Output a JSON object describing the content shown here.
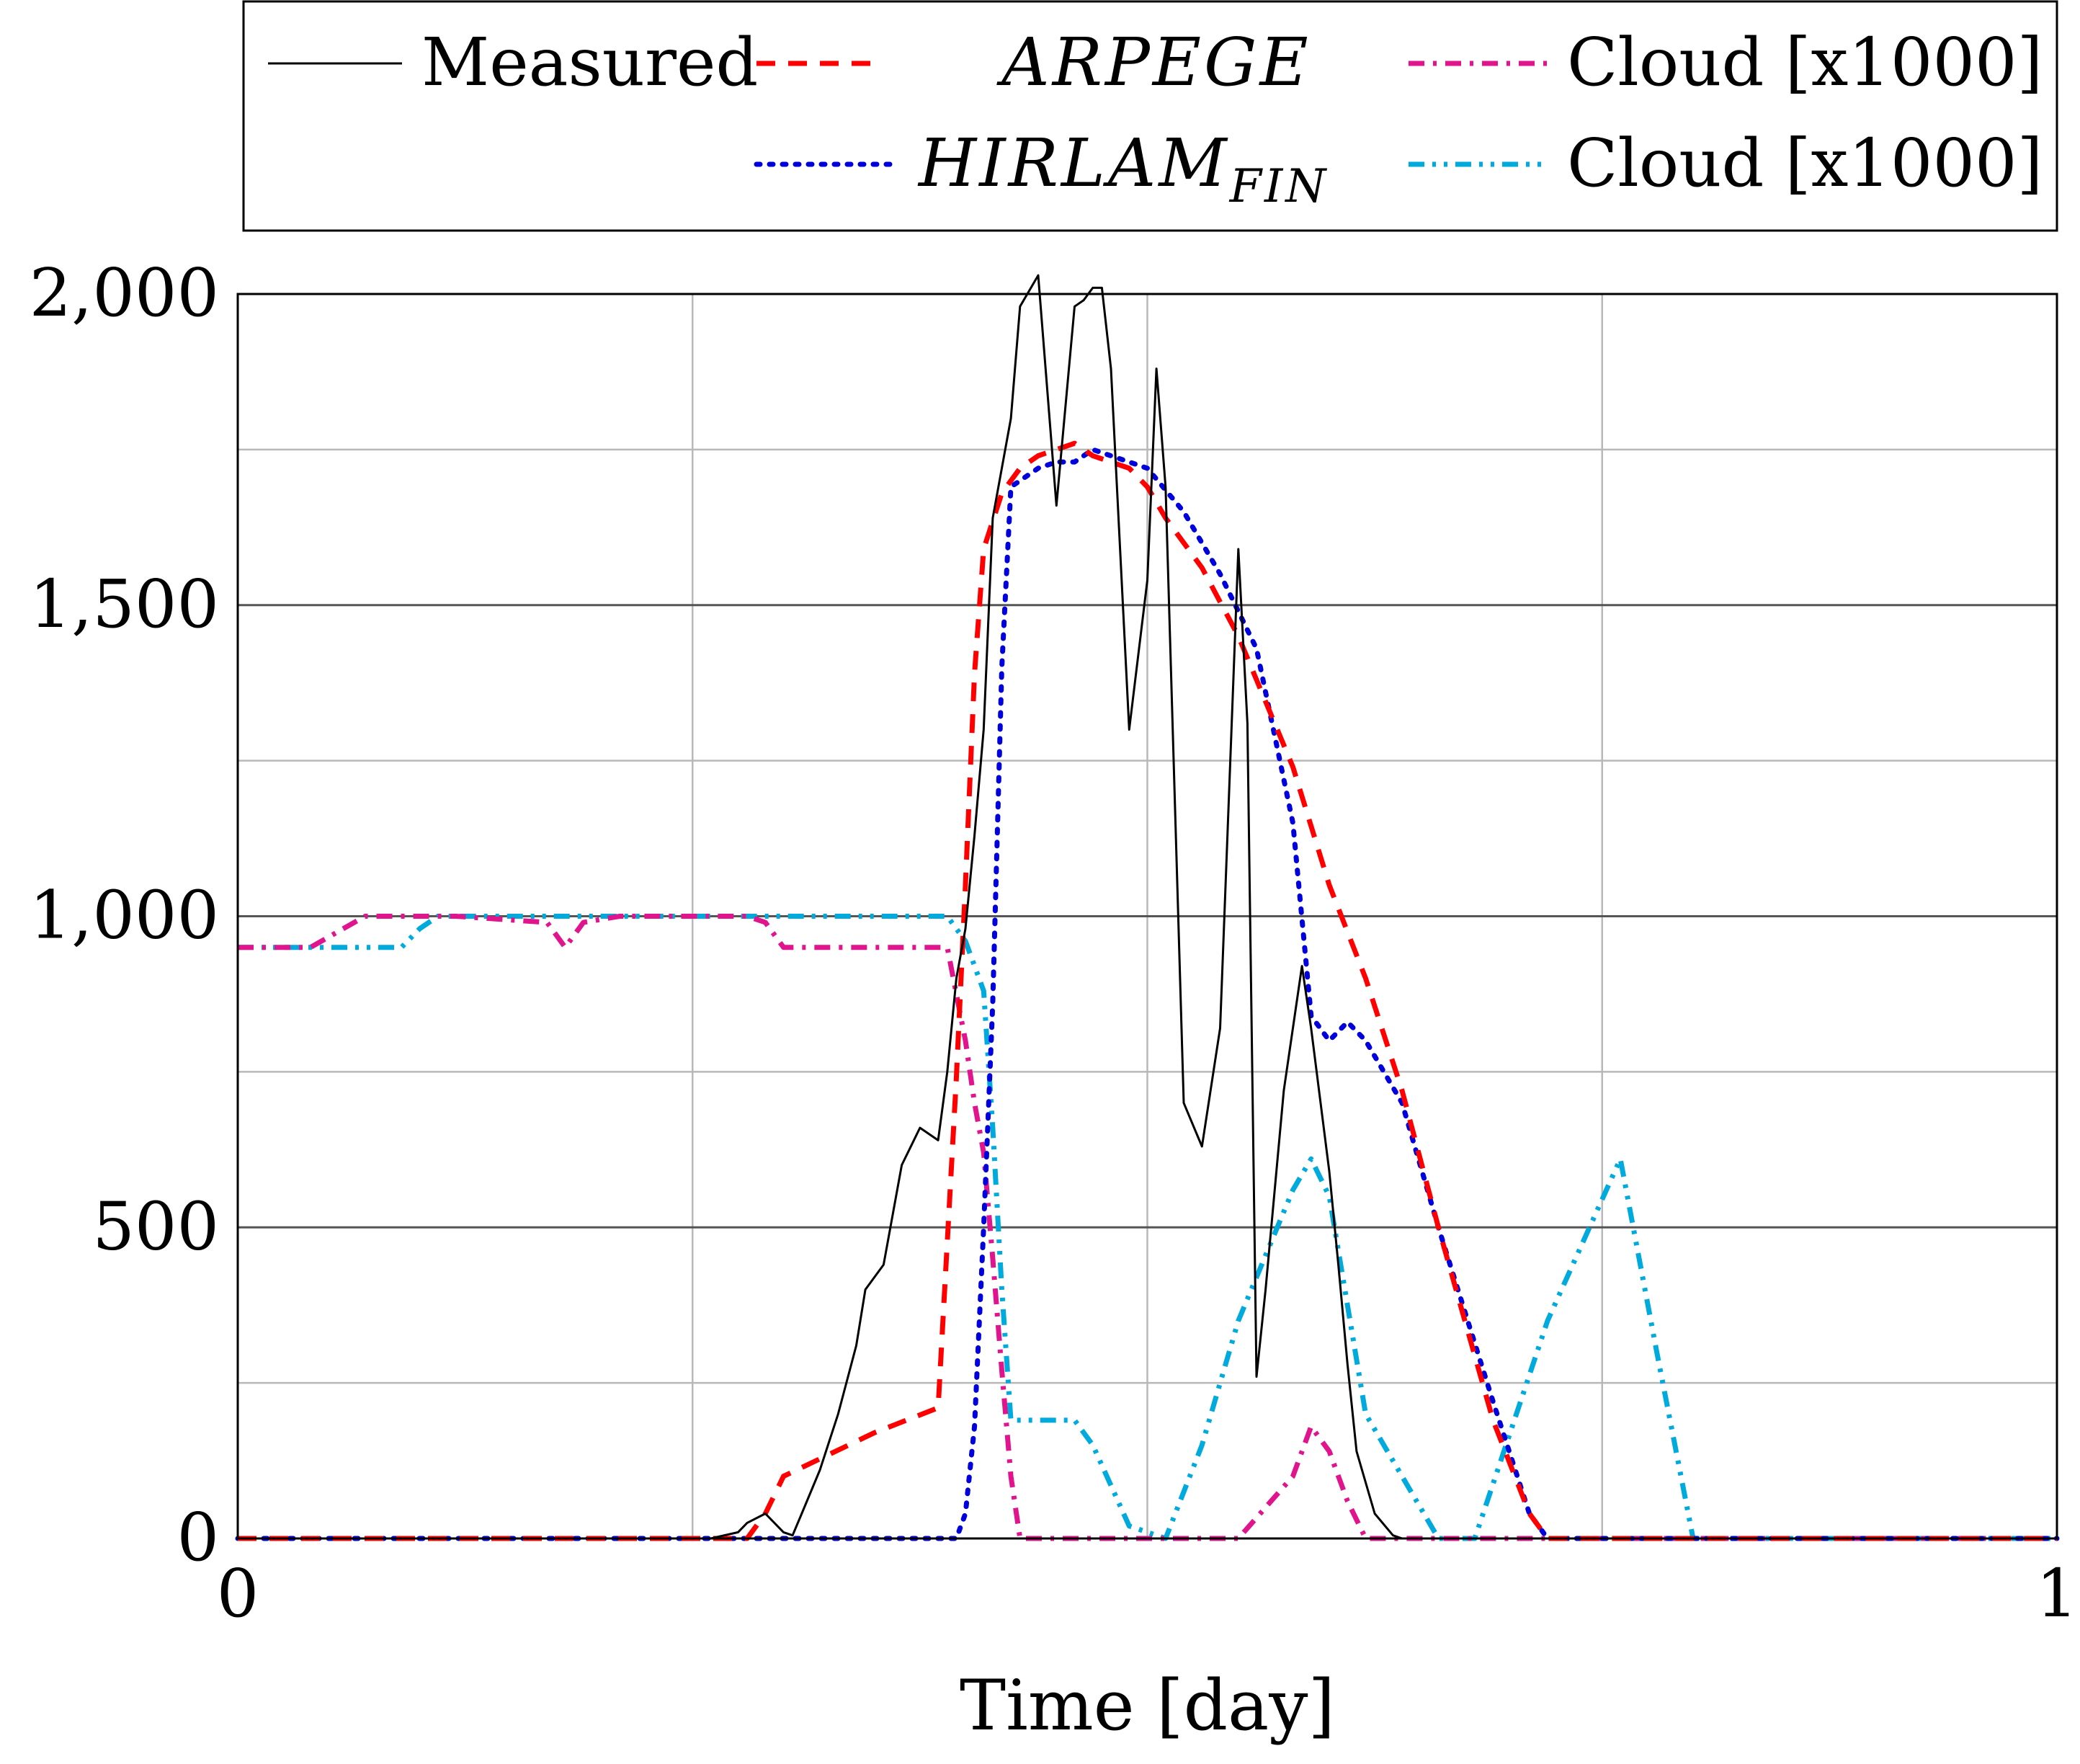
{
  "chart_data": {
    "type": "line",
    "xlabel": "Time [day]",
    "ylabel": "",
    "xlim": [
      0,
      1
    ],
    "ylim": [
      0,
      2000
    ],
    "xticks": [
      {
        "value": 0,
        "label": "0"
      },
      {
        "value": 1,
        "label": "1"
      }
    ],
    "yticks": [
      {
        "value": 0,
        "label": "0"
      },
      {
        "value": 500,
        "label": "500"
      },
      {
        "value": 1000,
        "label": "1,000"
      },
      {
        "value": 1500,
        "label": "1,500"
      },
      {
        "value": 2000,
        "label": "2,000"
      }
    ],
    "grid": {
      "major_x": [
        0.25,
        0.5,
        0.75
      ],
      "major_y": [
        500,
        1000,
        1500
      ],
      "minor_y": [
        250,
        750,
        1250,
        1750
      ]
    },
    "legend_position": "top (above plot)",
    "series": [
      {
        "name": "Measured",
        "style": "solid",
        "color": "#000000",
        "x": [
          0,
          0.26,
          0.275,
          0.28,
          0.29,
          0.3,
          0.305,
          0.31,
          0.32,
          0.33,
          0.34,
          0.345,
          0.355,
          0.365,
          0.375,
          0.385,
          0.39,
          0.395,
          0.4,
          0.405,
          0.41,
          0.415,
          0.425,
          0.43,
          0.44,
          0.45,
          0.46,
          0.465,
          0.47,
          0.475,
          0.48,
          0.49,
          0.5,
          0.505,
          0.51,
          0.52,
          0.53,
          0.54,
          0.55,
          0.555,
          0.56,
          0.565,
          0.575,
          0.585,
          0.59,
          0.6,
          0.605,
          0.61,
          0.615,
          0.625,
          0.635,
          0.64,
          0.65,
          0.66,
          0.67,
          0.68,
          0.69,
          0.7,
          0.71,
          0.72,
          1
        ],
        "y": [
          0,
          0,
          10,
          25,
          40,
          10,
          5,
          40,
          110,
          200,
          310,
          400,
          440,
          600,
          660,
          640,
          750,
          900,
          980,
          1130,
          1300,
          1640,
          1800,
          1980,
          2030,
          1660,
          1980,
          1990,
          2010,
          2010,
          1880,
          1300,
          1540,
          1880,
          1690,
          700,
          630,
          820,
          1590,
          1310,
          260,
          400,
          720,
          920,
          820,
          590,
          440,
          280,
          140,
          40,
          5,
          0,
          0,
          0,
          0,
          0,
          0,
          0,
          0,
          0,
          0
        ]
      },
      {
        "name": "ARPEGE",
        "style": "dashed",
        "color": "#ff0000",
        "x": [
          0,
          0.28,
          0.29,
          0.3,
          0.35,
          0.385,
          0.395,
          0.4,
          0.405,
          0.41,
          0.42,
          0.43,
          0.44,
          0.45,
          0.46,
          0.47,
          0.48,
          0.49,
          0.5,
          0.51,
          0.53,
          0.55,
          0.58,
          0.6,
          0.62,
          0.64,
          0.66,
          0.69,
          0.71,
          0.72,
          1
        ],
        "y": [
          0,
          0,
          40,
          100,
          170,
          210,
          740,
          1050,
          1390,
          1590,
          1680,
          1720,
          1740,
          1750,
          1760,
          1740,
          1730,
          1720,
          1690,
          1640,
          1560,
          1450,
          1240,
          1050,
          900,
          720,
          500,
          190,
          40,
          0,
          0
        ]
      },
      {
        "name": "HIRLAM_FIN",
        "style": "dotted",
        "color": "#0000dd",
        "x": [
          0,
          0.395,
          0.4,
          0.405,
          0.41,
          0.415,
          0.42,
          0.425,
          0.43,
          0.44,
          0.45,
          0.46,
          0.47,
          0.48,
          0.5,
          0.52,
          0.54,
          0.56,
          0.58,
          0.59,
          0.6,
          0.61,
          0.62,
          0.64,
          0.66,
          0.69,
          0.71,
          0.72,
          1
        ],
        "y": [
          0,
          0,
          40,
          180,
          500,
          860,
          1400,
          1690,
          1700,
          1720,
          1730,
          1730,
          1750,
          1740,
          1720,
          1650,
          1550,
          1430,
          1150,
          840,
          800,
          830,
          800,
          700,
          500,
          220,
          40,
          0,
          0
        ]
      },
      {
        "name": "Cloud [x1000]",
        "style": "dash-dot",
        "color": "#e0148c",
        "x": [
          0,
          0.04,
          0.07,
          0.12,
          0.17,
          0.18,
          0.19,
          0.21,
          0.25,
          0.28,
          0.29,
          0.3,
          0.39,
          0.4,
          0.405,
          0.41,
          0.415,
          0.42,
          0.425,
          0.43,
          0.44,
          0.45,
          0.5,
          0.55,
          0.58,
          0.59,
          0.6,
          0.61,
          0.62,
          0.64,
          1
        ],
        "y": [
          950,
          950,
          1000,
          1000,
          990,
          950,
          990,
          1000,
          1000,
          1000,
          990,
          950,
          950,
          800,
          700,
          620,
          450,
          270,
          100,
          0,
          0,
          0,
          0,
          0,
          100,
          180,
          140,
          60,
          0,
          0,
          0
        ]
      },
      {
        "name": "Cloud [x1000]",
        "style": "dash-dot-dot",
        "color": "#00aadd",
        "x": [
          0,
          0.09,
          0.1,
          0.11,
          0.12,
          0.2,
          0.3,
          0.39,
          0.395,
          0.4,
          0.41,
          0.415,
          0.42,
          0.425,
          0.43,
          0.44,
          0.46,
          0.47,
          0.49,
          0.51,
          0.53,
          0.55,
          0.58,
          0.59,
          0.6,
          0.62,
          0.66,
          0.68,
          0.72,
          0.76,
          0.78,
          0.8,
          1
        ],
        "y": [
          950,
          950,
          980,
          1000,
          1000,
          1000,
          1000,
          1000,
          980,
          960,
          880,
          660,
          400,
          190,
          190,
          190,
          190,
          150,
          20,
          0,
          150,
          350,
          560,
          610,
          550,
          200,
          0,
          0,
          350,
          610,
          300,
          0,
          0
        ]
      }
    ]
  }
}
